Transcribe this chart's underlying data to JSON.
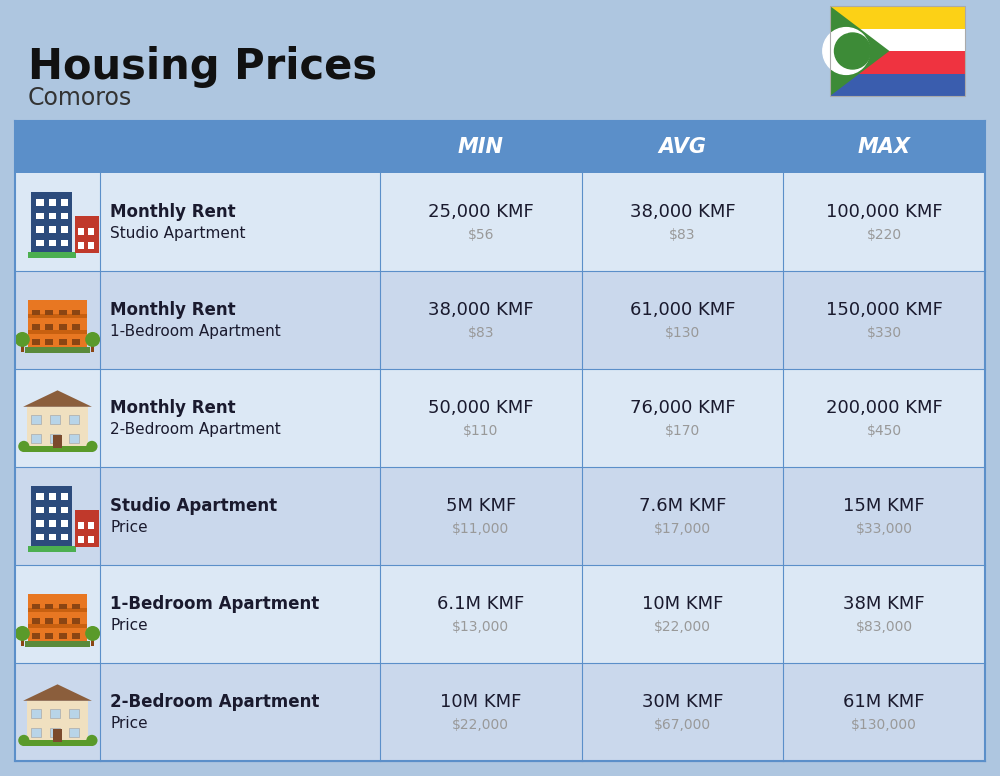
{
  "title": "Housing Prices",
  "subtitle": "Comoros",
  "background_color": "#aec6e0",
  "header_bg_color": "#5b8fc9",
  "header_text_color": "#ffffff",
  "row_colors": [
    "#dce8f5",
    "#cad8ec"
  ],
  "col_header_labels": [
    "MIN",
    "AVG",
    "MAX"
  ],
  "rows": [
    {
      "icon_type": "blue_tall",
      "label_bold": "Monthly Rent",
      "label_regular": "Studio Apartment",
      "min_main": "25,000 KMF",
      "min_sub": "$56",
      "avg_main": "38,000 KMF",
      "avg_sub": "$83",
      "max_main": "100,000 KMF",
      "max_sub": "$220"
    },
    {
      "icon_type": "orange_wide",
      "label_bold": "Monthly Rent",
      "label_regular": "1-Bedroom Apartment",
      "min_main": "38,000 KMF",
      "min_sub": "$83",
      "avg_main": "61,000 KMF",
      "avg_sub": "$130",
      "max_main": "150,000 KMF",
      "max_sub": "$330"
    },
    {
      "icon_type": "beige_house",
      "label_bold": "Monthly Rent",
      "label_regular": "2-Bedroom Apartment",
      "min_main": "50,000 KMF",
      "min_sub": "$110",
      "avg_main": "76,000 KMF",
      "avg_sub": "$170",
      "max_main": "200,000 KMF",
      "max_sub": "$450"
    },
    {
      "icon_type": "blue_tall",
      "label_bold": "Studio Apartment",
      "label_regular": "Price",
      "min_main": "5M KMF",
      "min_sub": "$11,000",
      "avg_main": "7.6M KMF",
      "avg_sub": "$17,000",
      "max_main": "15M KMF",
      "max_sub": "$33,000"
    },
    {
      "icon_type": "orange_wide",
      "label_bold": "1-Bedroom Apartment",
      "label_regular": "Price",
      "min_main": "6.1M KMF",
      "min_sub": "$13,000",
      "avg_main": "10M KMF",
      "avg_sub": "$22,000",
      "max_main": "38M KMF",
      "max_sub": "$83,000"
    },
    {
      "icon_type": "beige_house",
      "label_bold": "2-Bedroom Apartment",
      "label_regular": "Price",
      "min_main": "10M KMF",
      "min_sub": "$22,000",
      "avg_main": "30M KMF",
      "avg_sub": "$67,000",
      "max_main": "61M KMF",
      "max_sub": "$130,000"
    }
  ],
  "main_text_color": "#1a1a2e",
  "sub_text_color": "#999999",
  "divider_color": "#5b8fc9",
  "flag_stripes": [
    "#FCD116",
    "#FFFFFF",
    "#EF3340",
    "#3A5DAE"
  ],
  "flag_green": "#3D8B37",
  "title_fontsize": 30,
  "subtitle_fontsize": 17,
  "header_fontsize": 15,
  "label_bold_fontsize": 12,
  "label_reg_fontsize": 11,
  "data_main_fontsize": 13,
  "data_sub_fontsize": 10
}
